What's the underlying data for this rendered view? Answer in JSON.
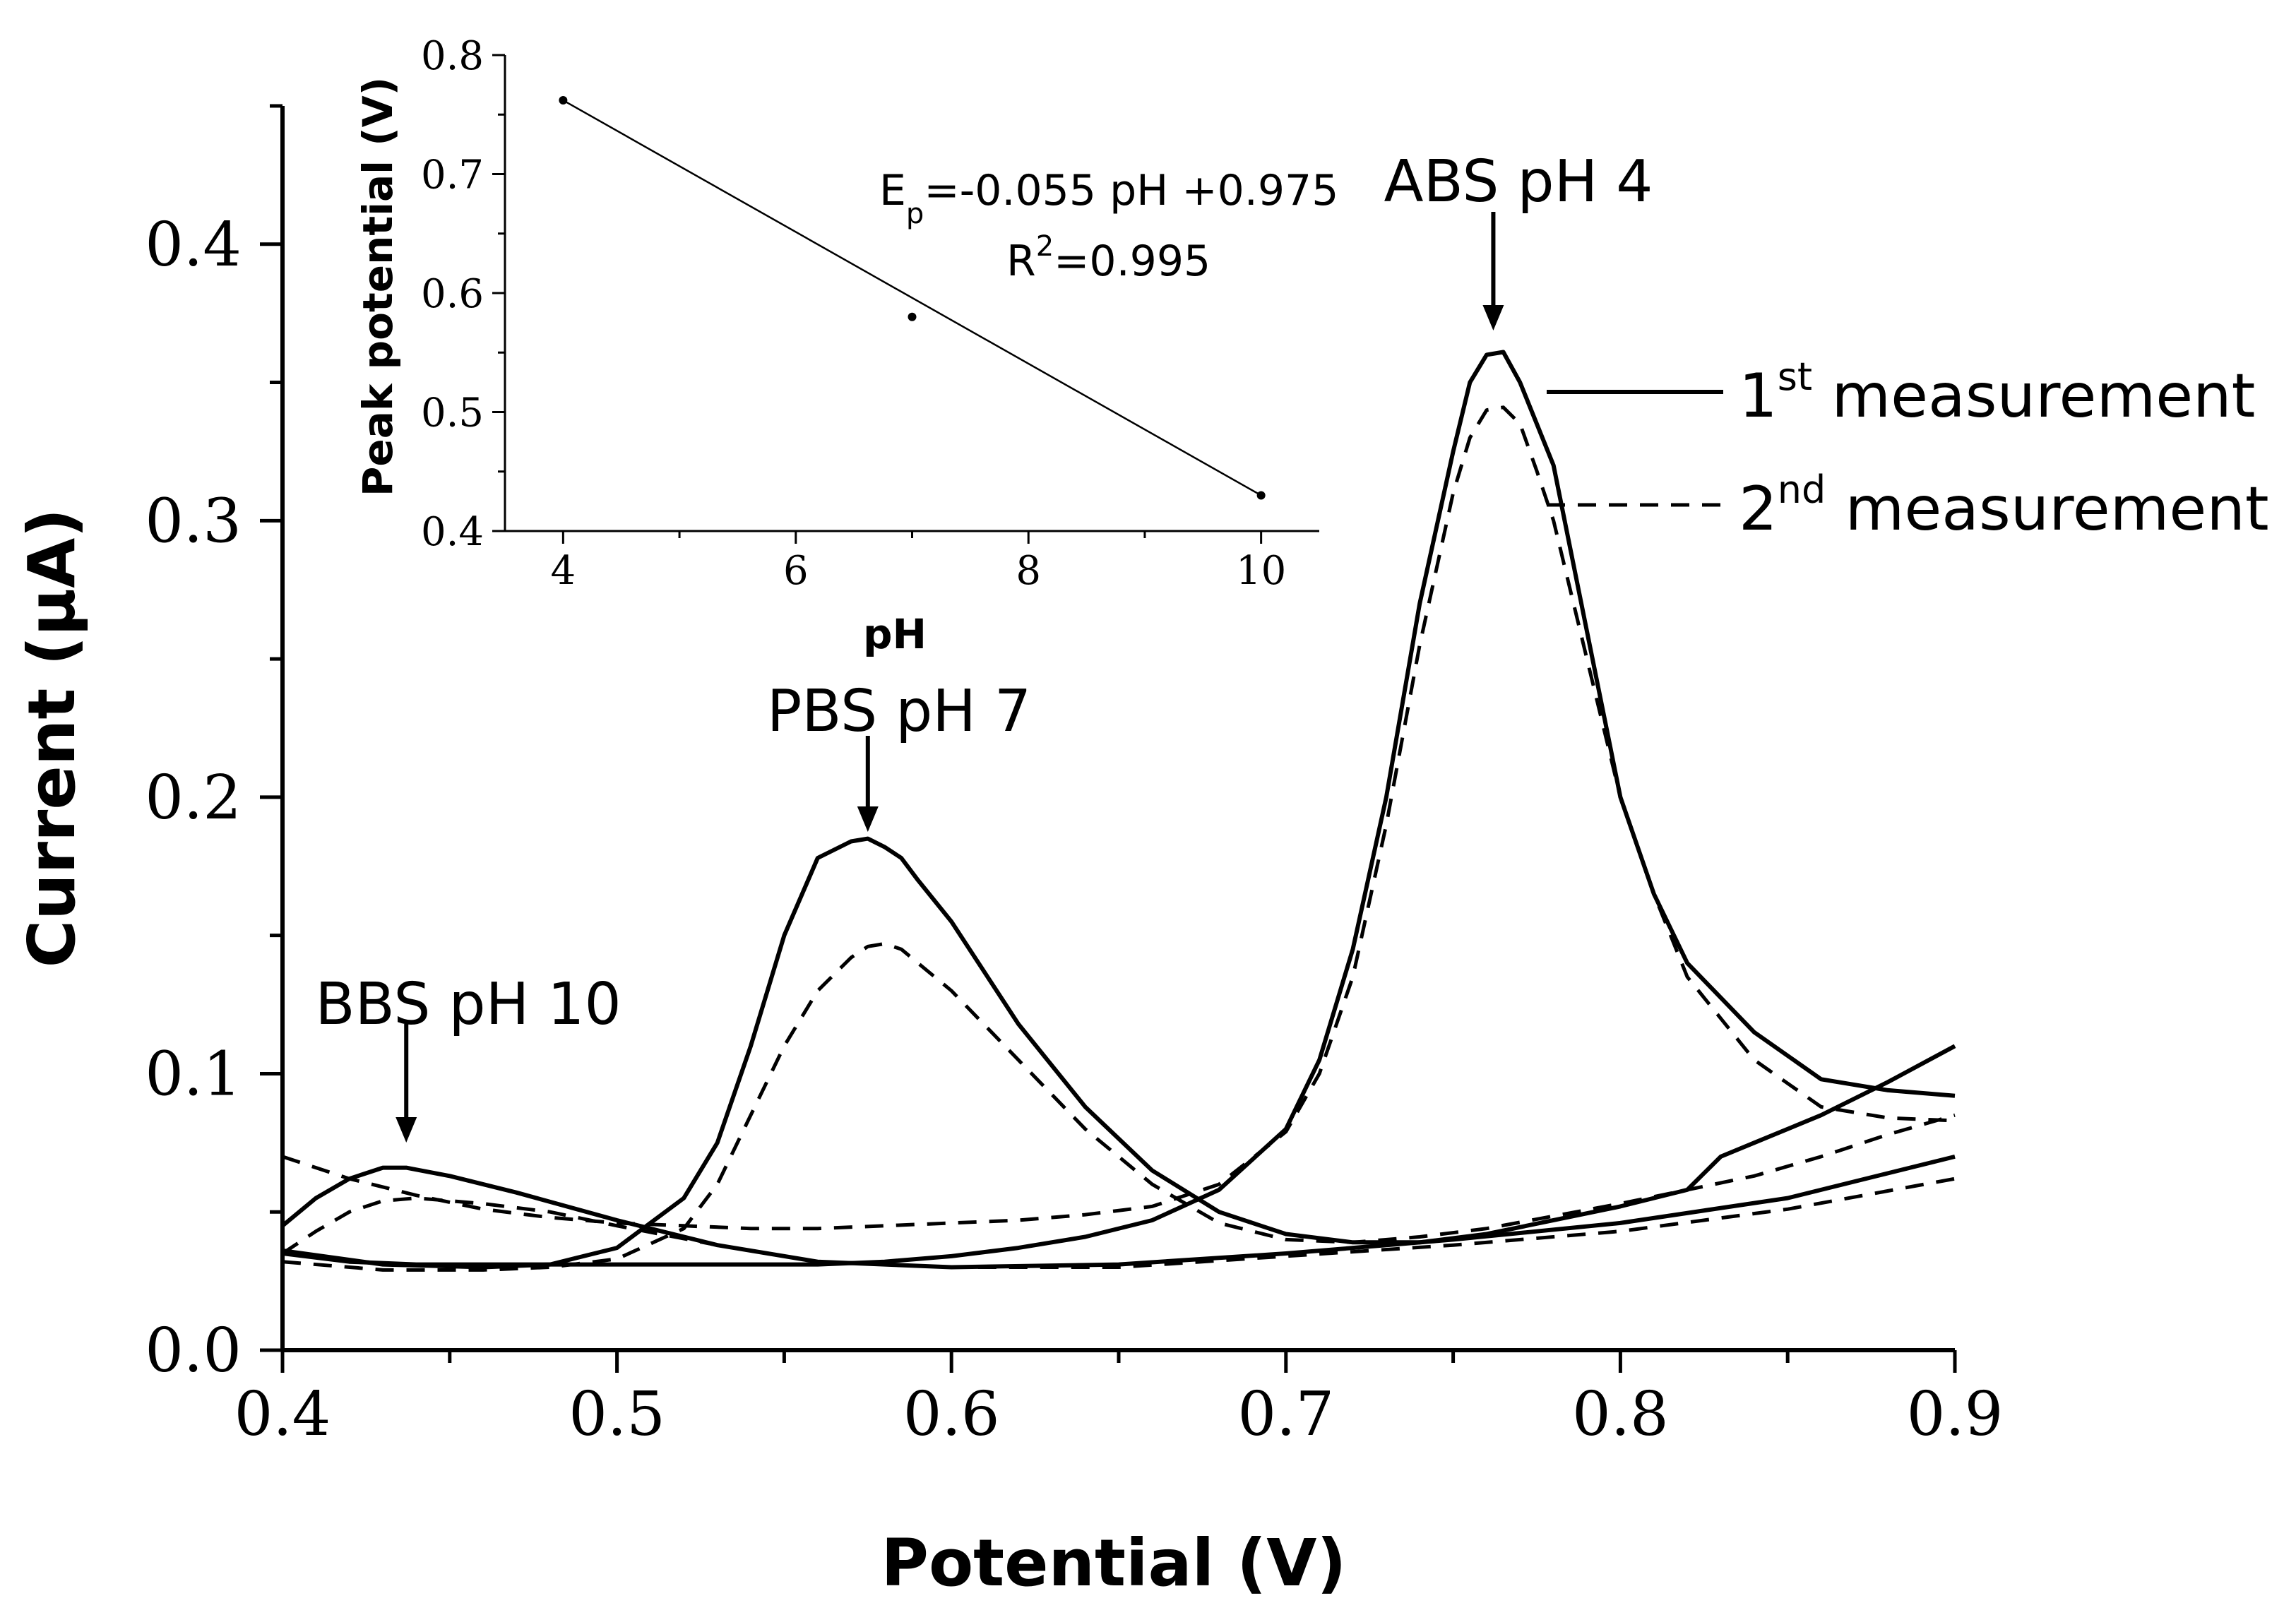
{
  "chart_data": [
    {
      "type": "line",
      "title": "",
      "xlabel": "Potential (V)",
      "ylabel": "Current (µA)",
      "xlim": [
        0.4,
        0.9
      ],
      "ylim": [
        0.0,
        0.45
      ],
      "xticks": [
        "0.4",
        "0.5",
        "0.6",
        "0.7",
        "0.8",
        "0.9"
      ],
      "yticks": [
        "0.0",
        "0.1",
        "0.2",
        "0.3",
        "0.4"
      ],
      "grid": false,
      "legend": {
        "position": "top-right",
        "entries": [
          {
            "key": "first",
            "sup": "st",
            "pre": "1",
            "post": " measurement",
            "style": "solid"
          },
          {
            "key": "second",
            "sup": "nd",
            "pre": "2",
            "post": " measurement",
            "style": "dashed"
          }
        ]
      },
      "annotations": [
        {
          "text": "BBS pH 10",
          "x": 0.437,
          "y": 0.066
        },
        {
          "text": "PBS pH 7",
          "x": 0.575,
          "y": 0.185
        },
        {
          "text": "ABS pH 4",
          "x": 0.762,
          "y": 0.36
        }
      ],
      "series": [
        {
          "name": "ABS pH 4 - 1st measurement",
          "style": "solid",
          "x": [
            0.4,
            0.42,
            0.44,
            0.46,
            0.48,
            0.5,
            0.52,
            0.54,
            0.56,
            0.58,
            0.6,
            0.62,
            0.64,
            0.66,
            0.68,
            0.7,
            0.71,
            0.72,
            0.73,
            0.74,
            0.75,
            0.755,
            0.76,
            0.765,
            0.77,
            0.775,
            0.78,
            0.79,
            0.8,
            0.81,
            0.82,
            0.84,
            0.86,
            0.88,
            0.9
          ],
          "y": [
            0.035,
            0.032,
            0.031,
            0.031,
            0.031,
            0.031,
            0.031,
            0.031,
            0.031,
            0.032,
            0.034,
            0.037,
            0.041,
            0.047,
            0.058,
            0.08,
            0.105,
            0.145,
            0.2,
            0.27,
            0.325,
            0.35,
            0.36,
            0.361,
            0.35,
            0.335,
            0.32,
            0.26,
            0.2,
            0.165,
            0.14,
            0.115,
            0.098,
            0.094,
            0.092
          ]
        },
        {
          "name": "ABS pH 4 - 2nd measurement",
          "style": "dashed",
          "x": [
            0.4,
            0.42,
            0.44,
            0.46,
            0.48,
            0.5,
            0.52,
            0.54,
            0.56,
            0.58,
            0.6,
            0.62,
            0.64,
            0.66,
            0.68,
            0.7,
            0.71,
            0.72,
            0.73,
            0.74,
            0.75,
            0.755,
            0.76,
            0.765,
            0.77,
            0.775,
            0.78,
            0.79,
            0.8,
            0.81,
            0.82,
            0.84,
            0.86,
            0.88,
            0.9
          ],
          "y": [
            0.07,
            0.062,
            0.056,
            0.051,
            0.048,
            0.046,
            0.045,
            0.044,
            0.044,
            0.045,
            0.046,
            0.047,
            0.049,
            0.052,
            0.06,
            0.079,
            0.1,
            0.135,
            0.19,
            0.255,
            0.31,
            0.33,
            0.34,
            0.341,
            0.335,
            0.318,
            0.3,
            0.25,
            0.2,
            0.165,
            0.135,
            0.105,
            0.088,
            0.084,
            0.083
          ]
        },
        {
          "name": "PBS pH 7 - 1st measurement",
          "style": "solid",
          "x": [
            0.4,
            0.43,
            0.46,
            0.48,
            0.5,
            0.52,
            0.53,
            0.54,
            0.55,
            0.56,
            0.57,
            0.575,
            0.58,
            0.585,
            0.59,
            0.6,
            0.62,
            0.64,
            0.66,
            0.68,
            0.7,
            0.72,
            0.74,
            0.76,
            0.8,
            0.82,
            0.83,
            0.84,
            0.86,
            0.88,
            0.9
          ],
          "y": [
            0.036,
            0.031,
            0.03,
            0.031,
            0.037,
            0.055,
            0.075,
            0.11,
            0.15,
            0.178,
            0.184,
            0.185,
            0.182,
            0.178,
            0.17,
            0.155,
            0.118,
            0.088,
            0.065,
            0.05,
            0.042,
            0.039,
            0.039,
            0.042,
            0.052,
            0.058,
            0.07,
            0.075,
            0.085,
            0.097,
            0.11
          ]
        },
        {
          "name": "PBS pH 7 - 2nd measurement",
          "style": "dashed",
          "x": [
            0.4,
            0.43,
            0.46,
            0.48,
            0.5,
            0.52,
            0.53,
            0.54,
            0.55,
            0.56,
            0.57,
            0.575,
            0.58,
            0.585,
            0.59,
            0.6,
            0.62,
            0.64,
            0.66,
            0.68,
            0.7,
            0.72,
            0.74,
            0.76,
            0.8,
            0.84,
            0.86,
            0.88,
            0.9
          ],
          "y": [
            0.032,
            0.029,
            0.029,
            0.03,
            0.033,
            0.044,
            0.06,
            0.085,
            0.11,
            0.13,
            0.142,
            0.146,
            0.147,
            0.145,
            0.14,
            0.13,
            0.105,
            0.08,
            0.06,
            0.046,
            0.04,
            0.039,
            0.041,
            0.044,
            0.053,
            0.063,
            0.07,
            0.078,
            0.085
          ]
        },
        {
          "name": "BBS pH 10 - 1st measurement",
          "style": "solid",
          "x": [
            0.4,
            0.41,
            0.42,
            0.43,
            0.437,
            0.45,
            0.47,
            0.5,
            0.53,
            0.56,
            0.6,
            0.65,
            0.7,
            0.75,
            0.8,
            0.85,
            0.9
          ],
          "y": [
            0.045,
            0.055,
            0.062,
            0.066,
            0.066,
            0.063,
            0.057,
            0.047,
            0.038,
            0.032,
            0.03,
            0.031,
            0.035,
            0.04,
            0.046,
            0.055,
            0.07
          ]
        },
        {
          "name": "BBS pH 10 - 2nd measurement",
          "style": "dashed",
          "x": [
            0.4,
            0.41,
            0.42,
            0.43,
            0.44,
            0.46,
            0.48,
            0.5,
            0.53,
            0.56,
            0.6,
            0.65,
            0.7,
            0.75,
            0.8,
            0.85,
            0.9
          ],
          "y": [
            0.035,
            0.043,
            0.05,
            0.054,
            0.055,
            0.053,
            0.05,
            0.045,
            0.038,
            0.032,
            0.03,
            0.03,
            0.034,
            0.038,
            0.043,
            0.051,
            0.062
          ]
        }
      ]
    },
    {
      "type": "scatter",
      "title": "",
      "xlabel": "pH",
      "ylabel": "Peak potential (V)",
      "xlim": [
        3.5,
        10.5
      ],
      "ylim": [
        0.4,
        0.8
      ],
      "xticks": [
        "4",
        "6",
        "8",
        "10"
      ],
      "yticks": [
        "0.4",
        "0.5",
        "0.6",
        "0.7",
        "0.8"
      ],
      "grid": false,
      "points": {
        "x": [
          4,
          7,
          10
        ],
        "y": [
          0.762,
          0.58,
          0.43
        ]
      },
      "fit": {
        "slope": -0.055,
        "intercept": 0.975,
        "r2": 0.995
      },
      "equation": {
        "main": "E",
        "sub": "p",
        "rest": "=-0.055 pH +0.975"
      },
      "r_squared": {
        "main": "R",
        "sup": "2",
        "rest": "=0.995"
      }
    }
  ]
}
